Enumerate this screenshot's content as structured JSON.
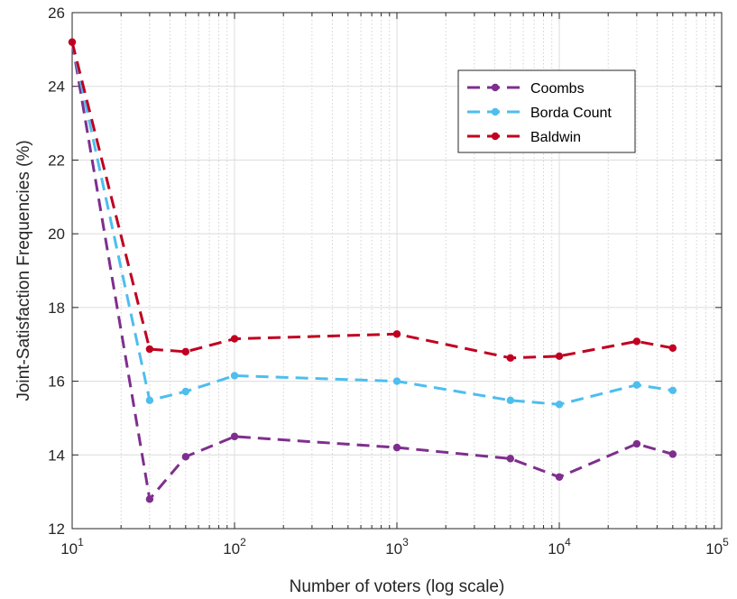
{
  "chart_data": {
    "type": "line",
    "xlabel": "Number of voters (log scale)",
    "ylabel": "Joint-Satisfaction Frequencies (%)",
    "x_scale": "log",
    "xlim": [
      10,
      100000
    ],
    "ylim": [
      12,
      26
    ],
    "x_ticks": [
      {
        "base": "10",
        "exp": "1"
      },
      {
        "base": "10",
        "exp": "2"
      },
      {
        "base": "10",
        "exp": "3"
      },
      {
        "base": "10",
        "exp": "4"
      },
      {
        "base": "10",
        "exp": "5"
      }
    ],
    "y_ticks": [
      "12",
      "14",
      "16",
      "18",
      "20",
      "22",
      "24",
      "26"
    ],
    "grid": true,
    "legend_position": "top-right",
    "x": [
      10,
      30,
      50,
      100,
      1000,
      5000,
      10000,
      30000,
      50000
    ],
    "series": [
      {
        "name": "Coombs",
        "color": "#7e2f8e",
        "values": [
          25.2,
          12.8,
          13.95,
          14.5,
          14.2,
          13.9,
          13.4,
          14.3,
          14.02
        ]
      },
      {
        "name": "Borda Count",
        "color": "#4dbeee",
        "values": [
          25.2,
          15.48,
          15.72,
          16.15,
          16.0,
          15.48,
          15.37,
          15.9,
          15.75
        ]
      },
      {
        "name": "Baldwin",
        "color": "#c00020",
        "values": [
          25.2,
          16.87,
          16.8,
          17.15,
          17.28,
          16.63,
          16.68,
          17.08,
          16.9
        ]
      }
    ]
  }
}
